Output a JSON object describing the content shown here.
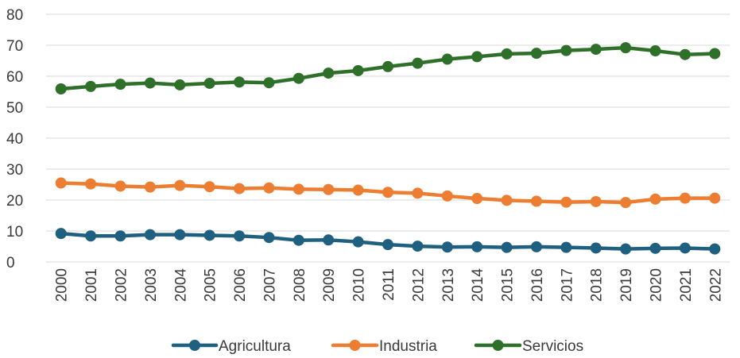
{
  "chart_data": {
    "type": "line",
    "title": "",
    "xlabel": "",
    "ylabel": "",
    "ylim": [
      0,
      80
    ],
    "yticks": [
      0,
      10,
      20,
      30,
      40,
      50,
      60,
      70,
      80
    ],
    "grid": true,
    "legend_position": "bottom",
    "categories": [
      "2000",
      "2001",
      "2002",
      "2003",
      "2004",
      "2005",
      "2006",
      "2007",
      "2008",
      "2009",
      "2010",
      "2011",
      "2012",
      "2013",
      "2014",
      "2015",
      "2016",
      "2017",
      "2018",
      "2019",
      "2020",
      "2021",
      "2022"
    ],
    "series": [
      {
        "name": "Agricultura",
        "color": "#1f5f7f",
        "values": [
          9.2,
          8.4,
          8.4,
          8.8,
          8.8,
          8.6,
          8.4,
          7.9,
          7.0,
          7.1,
          6.5,
          5.6,
          5.1,
          4.8,
          4.9,
          4.7,
          4.9,
          4.7,
          4.5,
          4.2,
          4.4,
          4.5,
          4.2
        ]
      },
      {
        "name": "Industria",
        "color": "#ed7d31",
        "values": [
          25.5,
          25.2,
          24.5,
          24.2,
          24.7,
          24.3,
          23.7,
          23.9,
          23.5,
          23.4,
          23.2,
          22.5,
          22.2,
          21.3,
          20.5,
          19.9,
          19.6,
          19.3,
          19.5,
          19.2,
          20.3,
          20.6,
          20.6
        ]
      },
      {
        "name": "Servicios",
        "color": "#2e6f2a",
        "values": [
          55.9,
          56.7,
          57.4,
          57.8,
          57.2,
          57.7,
          58.1,
          57.9,
          59.3,
          61.0,
          61.8,
          63.1,
          64.2,
          65.5,
          66.3,
          67.2,
          67.4,
          68.3,
          68.7,
          69.2,
          68.2,
          67.0,
          67.3
        ]
      }
    ]
  }
}
